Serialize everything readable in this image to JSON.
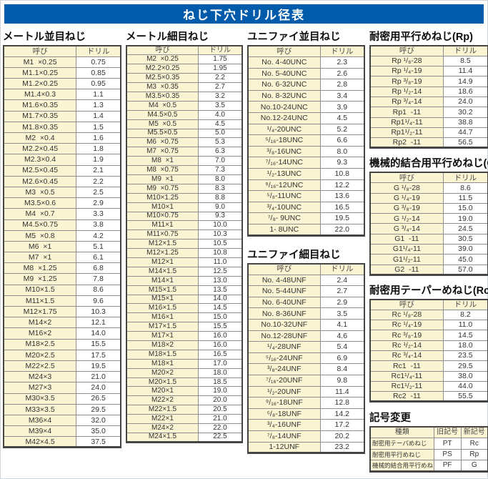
{
  "page_title": "ねじ下穴ドリル径表",
  "colors": {
    "title_bar": "#005bab",
    "cell_beige": "#fbf4d2",
    "table_border": "#454545"
  },
  "sections": {
    "metric_coarse": {
      "title": "メートル並目ねじ",
      "headers": [
        "呼び",
        "ドリル"
      ],
      "rows": [
        [
          "M1  ×0.25",
          "0.75"
        ],
        [
          "M1.1×0.25",
          "0.85"
        ],
        [
          "M1.2×0.25",
          "0.95"
        ],
        [
          "M1.4×0.3",
          "1.1"
        ],
        [
          "M1.6×0.35",
          "1.3"
        ],
        [
          "M1.7×0.35",
          "1.4"
        ],
        [
          "M1.8×0.35",
          "1.5"
        ],
        [
          "M2  ×0.4",
          "1.6"
        ],
        [
          "M2.2×0.45",
          "1.8"
        ],
        [
          "M2.3×0.4",
          "1.9"
        ],
        [
          "M2.5×0.45",
          "2.1"
        ],
        [
          "M2.6×0.45",
          "2.2"
        ],
        [
          "M3  ×0.5",
          "2.5"
        ],
        [
          "M3.5×0.6",
          "2.9"
        ],
        [
          "M4  ×0.7",
          "3.3"
        ],
        [
          "M4.5×0.75",
          "3.8"
        ],
        [
          "M5  ×0.8",
          "4.2"
        ],
        [
          "M6  ×1",
          "5.1"
        ],
        [
          "M7  ×1",
          "6.1"
        ],
        [
          "M8  ×1.25",
          "6.8"
        ],
        [
          "M9  ×1.25",
          "7.8"
        ],
        [
          "M10×1.5",
          "8.6"
        ],
        [
          "M11×1.5",
          "9.6"
        ],
        [
          "M12×1.75",
          "10.3"
        ],
        [
          "M14×2",
          "12.1"
        ],
        [
          "M16×2",
          "14.0"
        ],
        [
          "M18×2.5",
          "15.5"
        ],
        [
          "M20×2.5",
          "17.5"
        ],
        [
          "M22×2.5",
          "19.5"
        ],
        [
          "M24×3",
          "21.0"
        ],
        [
          "M27×3",
          "24.0"
        ],
        [
          "M30×3.5",
          "26.5"
        ],
        [
          "M33×3.5",
          "29.5"
        ],
        [
          "M36×4",
          "32.0"
        ],
        [
          "M39×4",
          "35.0"
        ],
        [
          "M42×4.5",
          "37.5"
        ]
      ]
    },
    "metric_fine": {
      "title": "メートル細目ねじ",
      "headers": [
        "呼び",
        "ドリル"
      ],
      "rows": [
        [
          "M2  ×0.25",
          "1.75"
        ],
        [
          "M2.2×0.25",
          "1.95"
        ],
        [
          "M2.5×0.35",
          "2.2"
        ],
        [
          "M3  ×0.35",
          "2.7"
        ],
        [
          "M3.5×0.35",
          "3.2"
        ],
        [
          "M4  ×0.5",
          "3.5"
        ],
        [
          "M4.5×0.5",
          "4.0"
        ],
        [
          "M5  ×0.5",
          "4.5"
        ],
        [
          "M5.5×0.5",
          "5.0"
        ],
        [
          "M6  ×0.75",
          "5.3"
        ],
        [
          "M7  ×0.75",
          "6.3"
        ],
        [
          "M8  ×1",
          "7.0"
        ],
        [
          "M8  ×0.75",
          "7.3"
        ],
        [
          "M9  ×1",
          "8.0"
        ],
        [
          "M9  ×0.75",
          "8.3"
        ],
        [
          "M10×1.25",
          "8.8"
        ],
        [
          "M10×1",
          "9.0"
        ],
        [
          "M10×0.75",
          "9.3"
        ],
        [
          "M11×1",
          "10.0"
        ],
        [
          "M11×0.75",
          "10.3"
        ],
        [
          "M12×1.5",
          "10.5"
        ],
        [
          "M12×1.25",
          "10.8"
        ],
        [
          "M12×1",
          "11.0"
        ],
        [
          "M14×1.5",
          "12.5"
        ],
        [
          "M14×1",
          "13.0"
        ],
        [
          "M15×1.5",
          "13.5"
        ],
        [
          "M15×1",
          "14.0"
        ],
        [
          "M16×1.5",
          "14.5"
        ],
        [
          "M16×1",
          "15.0"
        ],
        [
          "M17×1.5",
          "15.5"
        ],
        [
          "M17×1",
          "16.0"
        ],
        [
          "M18×2",
          "16.0"
        ],
        [
          "M18×1.5",
          "16.5"
        ],
        [
          "M18×1",
          "17.0"
        ],
        [
          "M20×2",
          "18.0"
        ],
        [
          "M20×1.5",
          "18.5"
        ],
        [
          "M20×1",
          "19.0"
        ],
        [
          "M22×2",
          "20.0"
        ],
        [
          "M22×1.5",
          "20.5"
        ],
        [
          "M22×1",
          "21.0"
        ],
        [
          "M24×2",
          "22.0"
        ],
        [
          "M24×1.5",
          "22.5"
        ]
      ]
    },
    "unified_coarse": {
      "title": "ユニファイ並目ねじ",
      "headers": [
        "呼び",
        "ドリル"
      ],
      "rows": [
        [
          "No. 4-40UNC",
          "2.3"
        ],
        [
          "No. 5-40UNC",
          "2.6"
        ],
        [
          "No. 6-32UNC",
          "2.8"
        ],
        [
          "No. 8-32UNC",
          "3.4"
        ],
        [
          "No.10-24UNC",
          "3.9"
        ],
        [
          "No.12-24UNC",
          "4.5"
        ],
        [
          "¹/₄-20UNC",
          "5.2"
        ],
        [
          "⁵/₁₆-18UNC",
          "6.6"
        ],
        [
          "³/₈-16UNC",
          "8.0"
        ],
        [
          "⁷/₁₆-14UNC",
          "9.3"
        ],
        [
          "¹/₂-13UNC",
          "10.8"
        ],
        [
          "⁹/₁₆-12UNC",
          "12.2"
        ],
        [
          "⁵/₈-11UNC",
          "13.6"
        ],
        [
          "³/₄-10UNC",
          "16.5"
        ],
        [
          "⁷/₈- 9UNC",
          "19.5"
        ],
        [
          "1- 8UNC",
          "22.0"
        ]
      ]
    },
    "unified_fine": {
      "title": "ユニファイ細目ねじ",
      "headers": [
        "呼び",
        "ドリル"
      ],
      "rows": [
        [
          "No. 4-48UNF",
          "2.4"
        ],
        [
          "No. 5-44UNF",
          "2.7"
        ],
        [
          "No. 6-40UNF",
          "2.9"
        ],
        [
          "No. 8-36UNF",
          "3.5"
        ],
        [
          "No.10-32UNF",
          "4.1"
        ],
        [
          "No.12-28UNF",
          "4.6"
        ],
        [
          "¹/₄-28UNF",
          "5.4"
        ],
        [
          "⁵/₁₆-24UNF",
          "6.9"
        ],
        [
          "³/₈-24UNF",
          "8.4"
        ],
        [
          "⁷/₁₆-20UNF",
          "9.8"
        ],
        [
          "¹/₂-20UNF",
          "11.4"
        ],
        [
          "⁹/₁₆-18UNF",
          "12.8"
        ],
        [
          "⁵/₈-18UNF",
          "14.2"
        ],
        [
          "³/₄-16UNF",
          "17.2"
        ],
        [
          "⁷/₈-14UNF",
          "20.2"
        ],
        [
          "1-12UNF",
          "23.2"
        ]
      ]
    },
    "rp": {
      "title": "耐密用平行めねじ(Rp)",
      "headers": [
        "呼び",
        "ドリル"
      ],
      "rows": [
        [
          "Rp ¹/₈-28",
          "8.5"
        ],
        [
          "Rp ¹/₄-19",
          "11.4"
        ],
        [
          "Rp ³/₈-19",
          "14.9"
        ],
        [
          "Rp ¹/₂-14",
          "18.6"
        ],
        [
          "Rp ³/₄-14",
          "24.0"
        ],
        [
          "Rp1  -11",
          "30.2"
        ],
        [
          "Rp1¹/₄-11",
          "38.8"
        ],
        [
          "Rp1¹/₂-11",
          "44.7"
        ],
        [
          "Rp2  -11",
          "56.5"
        ]
      ]
    },
    "g": {
      "title": "機械的結合用平行めねじ(G)",
      "headers": [
        "呼び",
        "ドリル"
      ],
      "rows": [
        [
          "G ¹/₈-28",
          "8.6"
        ],
        [
          "G ¹/₄-19",
          "11.5"
        ],
        [
          "G ³/₈-19",
          "15.0"
        ],
        [
          "G ¹/₂-14",
          "19.0"
        ],
        [
          "G ³/₄-14",
          "24.5"
        ],
        [
          "G1  -11",
          "30.5"
        ],
        [
          "G1¹/₄-11",
          "39.0"
        ],
        [
          "G1¹/₂-11",
          "45.0"
        ],
        [
          "G2  -11",
          "57.0"
        ]
      ]
    },
    "rc": {
      "title": "耐密用テーパーめねじ(Rc)",
      "headers": [
        "呼び",
        "ドリル"
      ],
      "rows": [
        [
          "Rc ¹/₈-28",
          "8.2"
        ],
        [
          "Rc ¹/₄-19",
          "11.0"
        ],
        [
          "Rc ³/₈-19",
          "14.5"
        ],
        [
          "Rc ¹/₂-14",
          "18.0"
        ],
        [
          "Rc ³/₄-14",
          "23.5"
        ],
        [
          "Rc1  -11",
          "29.5"
        ],
        [
          "Rc1¹/₄-11",
          "38.0"
        ],
        [
          "Rc1¹/₂-11",
          "44.0"
        ],
        [
          "Rc2  -11",
          "55.5"
        ]
      ]
    },
    "symbol_change": {
      "title": "記号変更",
      "headers": [
        "種類",
        "旧記号",
        "新記号"
      ],
      "rows": [
        [
          "耐密用テーパめねじ",
          "PT",
          "Rc"
        ],
        [
          "耐密用平行めねじ",
          "PS",
          "Rp"
        ],
        [
          "機械的結合用平行めねじ",
          "PF",
          "G"
        ]
      ]
    }
  }
}
